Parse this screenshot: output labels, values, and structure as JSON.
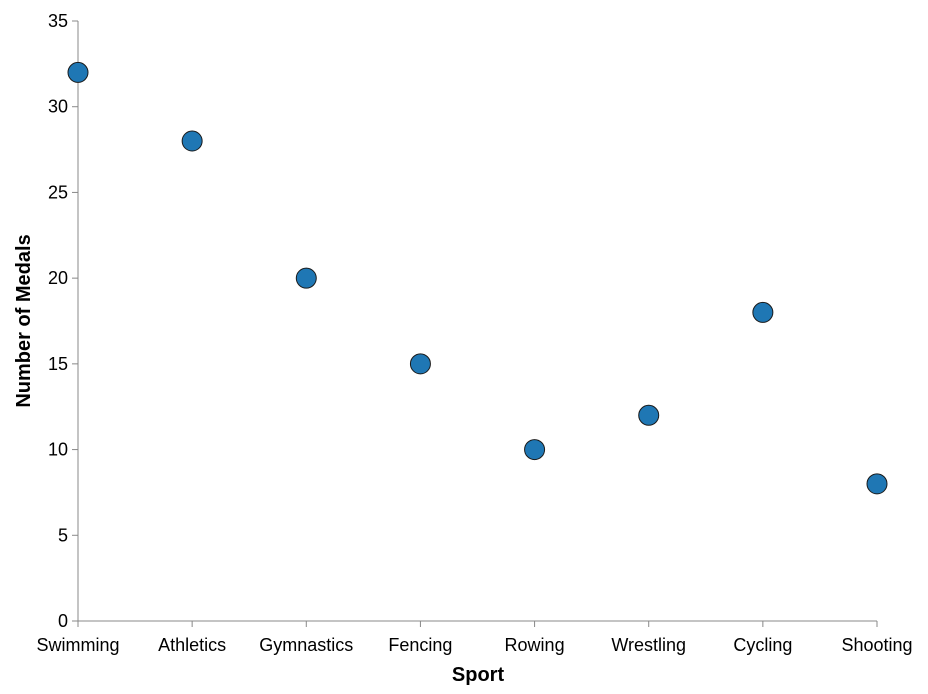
{
  "chart_data": {
    "type": "scatter",
    "title": "",
    "xlabel": "Sport",
    "ylabel": "Number of Medals",
    "categories": [
      "Swimming",
      "Athletics",
      "Gymnastics",
      "Fencing",
      "Rowing",
      "Wrestling",
      "Cycling",
      "Shooting"
    ],
    "values": [
      32,
      28,
      20,
      15,
      10,
      12,
      18,
      8
    ],
    "ylim": [
      0,
      35
    ],
    "yticks": [
      0,
      5,
      10,
      15,
      20,
      25,
      30,
      35
    ],
    "grid": false,
    "legend": "none",
    "colors": {
      "point_fill": "#1f77b4",
      "point_stroke": "#1a1a1a",
      "axis": "#888888"
    }
  }
}
